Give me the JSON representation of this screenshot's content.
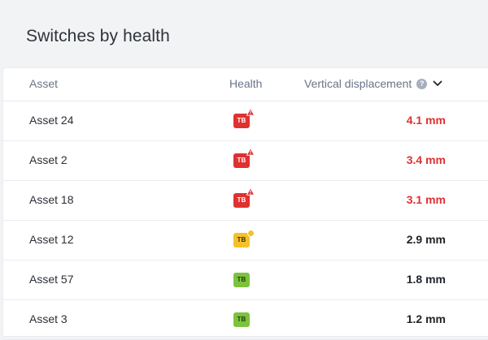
{
  "panel": {
    "title": "Switches by health"
  },
  "table": {
    "headers": {
      "asset": "Asset",
      "health": "Health",
      "displacement": "Vertical displacement",
      "help_glyph": "?"
    },
    "sort": {
      "direction": "descending",
      "icon": "chevron-down-icon"
    },
    "rows": [
      {
        "asset": "Asset 24",
        "badge": "TB",
        "status": "red",
        "alert": "warning",
        "value": "4.1 mm",
        "value_color": "#e03131"
      },
      {
        "asset": "Asset 2",
        "badge": "TB",
        "status": "red",
        "alert": "warning",
        "value": "3.4 mm",
        "value_color": "#e03131"
      },
      {
        "asset": "Asset 18",
        "badge": "TB",
        "status": "red",
        "alert": "warning",
        "value": "3.1 mm",
        "value_color": "#e03131"
      },
      {
        "asset": "Asset 12",
        "badge": "TB",
        "status": "yellow",
        "alert": "dot",
        "value": "2.9 mm",
        "value_color": "#1f2329"
      },
      {
        "asset": "Asset 57",
        "badge": "TB",
        "status": "green",
        "alert": "none",
        "value": "1.8 mm",
        "value_color": "#1f2329"
      },
      {
        "asset": "Asset 3",
        "badge": "TB",
        "status": "green",
        "alert": "none",
        "value": "1.2 mm",
        "value_color": "#1f2329"
      }
    ]
  },
  "colors": {
    "critical": "#e03131",
    "warning": "#f5c02b",
    "healthy": "#7cc33d",
    "background": "#f2f3f5"
  }
}
